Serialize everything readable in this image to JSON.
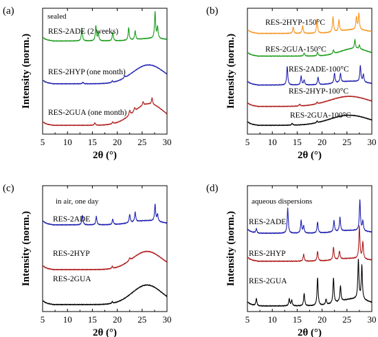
{
  "chart_data": [
    {
      "panel_label": "(a)",
      "type": "line",
      "xlabel": "2θ (°)",
      "ylabel": "Intensity (norm.)",
      "xlim": [
        5,
        30
      ],
      "xticks": [
        5,
        10,
        15,
        20,
        25,
        30
      ],
      "annotations": [
        "sealed"
      ],
      "series": [
        {
          "name": "RES-2ADE (2 weeks)",
          "color": "#1a9a1a",
          "baseline": 0.74,
          "bump": {
            "c": 27,
            "w": 3,
            "h": 0.02
          },
          "peaks": [
            [
              12.9,
              0.1
            ],
            [
              15.7,
              0.12
            ],
            [
              16.2,
              0.06
            ],
            [
              19.1,
              0.07
            ],
            [
              22.3,
              0.1
            ],
            [
              23.6,
              0.07
            ],
            [
              27.6,
              0.21
            ],
            [
              28.1,
              0.09
            ]
          ]
        },
        {
          "name": "RES-2HYP (one month)",
          "color": "#1f1fb0",
          "baseline": 0.4,
          "bump": {
            "c": 26.3,
            "w": 3.2,
            "h": 0.15
          },
          "peaks": [
            [
              13.1,
              0.012
            ],
            [
              19.0,
              0.012
            ],
            [
              21.5,
              0.015
            ]
          ]
        },
        {
          "name": "RES-2GUA (one month)",
          "color": "#b01a1a",
          "baseline": 0.07,
          "bump": {
            "c": 26.4,
            "w": 3.2,
            "h": 0.17
          },
          "peaks": [
            [
              15.5,
              0.02
            ],
            [
              19.1,
              0.015
            ],
            [
              22.5,
              0.04
            ],
            [
              23.5,
              0.03
            ],
            [
              25.2,
              0.03
            ],
            [
              27.0,
              0.05
            ]
          ]
        }
      ]
    },
    {
      "panel_label": "(b)",
      "type": "line",
      "xlabel": "2θ (°)",
      "ylabel": "Intensity (norm.)",
      "xlim": [
        5,
        30
      ],
      "xticks": [
        5,
        10,
        15,
        20,
        25,
        30
      ],
      "annotations": [],
      "series": [
        {
          "name": "RES-2HYP-150°C",
          "color": "#f7941d",
          "baseline": 0.8,
          "bump": {
            "c": 26.5,
            "w": 3,
            "h": 0.03
          },
          "peaks": [
            [
              14.2,
              0.05
            ],
            [
              16.1,
              0.06
            ],
            [
              19.0,
              0.11
            ],
            [
              22.2,
              0.12
            ],
            [
              23.4,
              0.09
            ],
            [
              26.9,
              0.1
            ],
            [
              27.4,
              0.13
            ]
          ]
        },
        {
          "name": "RES-2GUA-150°C",
          "color": "#1a9a1a",
          "baseline": 0.62,
          "bump": {
            "c": 26.5,
            "w": 2.8,
            "h": 0.06
          },
          "peaks": [
            [
              16.4,
              0.025
            ],
            [
              19.1,
              0.03
            ],
            [
              22.3,
              0.03
            ],
            [
              26.6,
              0.07
            ],
            [
              27.5,
              0.03
            ]
          ]
        },
        {
          "name": "RES-2ADE-100°C",
          "color": "#1f1fb0",
          "baseline": 0.39,
          "bump": {
            "c": 26,
            "w": 3,
            "h": 0.03
          },
          "peaks": [
            [
              13.0,
              0.15
            ],
            [
              15.8,
              0.07
            ],
            [
              16.4,
              0.04
            ],
            [
              19.2,
              0.06
            ],
            [
              22.5,
              0.08
            ],
            [
              23.7,
              0.07
            ],
            [
              27.7,
              0.13
            ],
            [
              28.3,
              0.06
            ]
          ]
        },
        {
          "name": "RES-2HYP-100°C",
          "color": "#b01a1a",
          "baseline": 0.22,
          "bump": {
            "c": 25.5,
            "w": 4,
            "h": 0.08
          },
          "peaks": [
            [
              15.5,
              0.015
            ],
            [
              19.0,
              0.012
            ]
          ]
        },
        {
          "name": "RES-2GUA-100°C",
          "color": "#000000",
          "baseline": 0.07,
          "bump": {
            "c": 25.5,
            "w": 4,
            "h": 0.08
          },
          "peaks": [
            [
              14.0,
              0.015
            ],
            [
              19.0,
              0.012
            ]
          ]
        }
      ]
    },
    {
      "panel_label": "(c)",
      "type": "line",
      "xlabel": "2θ (°)",
      "ylabel": "Intensity (norm.)",
      "xlim": [
        5,
        30
      ],
      "xticks": [
        5,
        10,
        15,
        20,
        25,
        30
      ],
      "annotations": [
        "in air, one day"
      ],
      "series": [
        {
          "name": "RES-2ADE",
          "color": "#1f1fb0",
          "baseline": 0.62,
          "bump": {
            "c": 26,
            "w": 3,
            "h": 0.03
          },
          "peaks": [
            [
              13.0,
              0.07
            ],
            [
              15.8,
              0.06
            ],
            [
              19.1,
              0.04
            ],
            [
              22.5,
              0.06
            ],
            [
              23.6,
              0.07
            ],
            [
              27.6,
              0.12
            ],
            [
              28.1,
              0.05
            ]
          ]
        },
        {
          "name": "RES-2HYP",
          "color": "#b01a1a",
          "baseline": 0.3,
          "bump": {
            "c": 26,
            "w": 3,
            "h": 0.13
          },
          "peaks": [
            [
              19.0,
              0.015
            ],
            [
              22.5,
              0.02
            ]
          ]
        },
        {
          "name": "RES-2GUA",
          "color": "#000000",
          "baseline": 0.05,
          "bump": {
            "c": 26,
            "w": 3,
            "h": 0.14
          },
          "peaks": [
            [
              19.0,
              0.012
            ]
          ]
        }
      ]
    },
    {
      "panel_label": "(d)",
      "type": "line",
      "xlabel": "2θ (°)",
      "ylabel": "Intensity (norm.)",
      "xlim": [
        5,
        30
      ],
      "xticks": [
        5,
        10,
        15,
        20,
        25,
        30
      ],
      "annotations": [
        "aqueous dispersions"
      ],
      "series": [
        {
          "name": "RES-2ADE",
          "color": "#1f1fb0",
          "baseline": 0.56,
          "bump": {
            "c": 26,
            "w": 3,
            "h": 0.02
          },
          "peaks": [
            [
              6.8,
              0.03
            ],
            [
              13.1,
              0.18
            ],
            [
              15.8,
              0.09
            ],
            [
              16.3,
              0.05
            ],
            [
              19.1,
              0.08
            ],
            [
              22.4,
              0.08
            ],
            [
              23.6,
              0.1
            ],
            [
              27.6,
              0.22
            ],
            [
              28.2,
              0.07
            ]
          ]
        },
        {
          "name": "RES-2HYP",
          "color": "#b01a1a",
          "baseline": 0.36,
          "bump": {
            "c": 26,
            "w": 3,
            "h": 0.02
          },
          "peaks": [
            [
              16.3,
              0.05
            ],
            [
              19.1,
              0.07
            ],
            [
              22.3,
              0.09
            ],
            [
              23.5,
              0.06
            ],
            [
              27.5,
              0.23
            ],
            [
              28.2,
              0.12
            ]
          ]
        },
        {
          "name": "RES-2GUA",
          "color": "#000000",
          "baseline": 0.04,
          "bump": {
            "c": 26.5,
            "w": 3,
            "h": 0.05
          },
          "peaks": [
            [
              6.8,
              0.05
            ],
            [
              13.4,
              0.05
            ],
            [
              13.9,
              0.04
            ],
            [
              16.4,
              0.09
            ],
            [
              19.1,
              0.2
            ],
            [
              20.8,
              0.04
            ],
            [
              22.3,
              0.18
            ],
            [
              23.7,
              0.11
            ],
            [
              27.3,
              0.28
            ],
            [
              28.0,
              0.24
            ]
          ]
        }
      ]
    }
  ]
}
